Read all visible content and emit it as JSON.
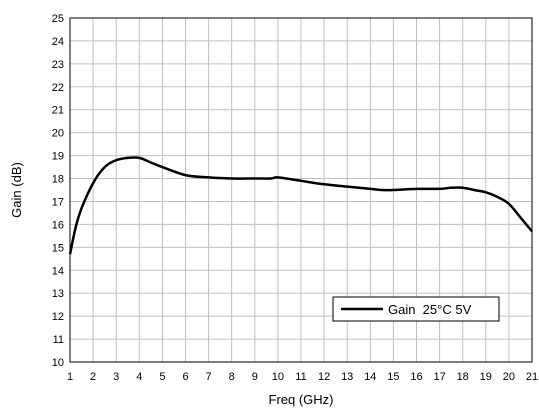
{
  "chart_data": {
    "type": "line",
    "xlabel": "Freq (GHz)",
    "ylabel": "Gain (dB)",
    "xlim": [
      1,
      21
    ],
    "ylim": [
      10,
      25
    ],
    "xticks": [
      1,
      2,
      3,
      4,
      5,
      6,
      7,
      8,
      9,
      10,
      11,
      12,
      13,
      14,
      15,
      16,
      17,
      18,
      19,
      20,
      21
    ],
    "yticks": [
      10,
      11,
      12,
      13,
      14,
      15,
      16,
      17,
      18,
      19,
      20,
      21,
      22,
      23,
      24,
      25
    ],
    "grid": true,
    "legend_position": "bottom-right",
    "series": [
      {
        "name": "Gain  25°C 5V",
        "color": "#000000",
        "x": [
          1,
          1.25,
          1.5,
          2,
          2.5,
          3,
          3.5,
          4,
          4.5,
          5,
          6,
          7,
          8,
          9,
          9.7,
          10,
          11,
          12,
          13,
          14,
          14.5,
          15,
          16,
          17,
          17.5,
          18,
          18.5,
          19,
          19.5,
          20,
          20.5,
          21
        ],
        "y": [
          14.7,
          15.9,
          16.7,
          17.8,
          18.5,
          18.8,
          18.9,
          18.9,
          18.7,
          18.5,
          18.15,
          18.05,
          18.0,
          18.0,
          18.0,
          18.05,
          17.9,
          17.75,
          17.65,
          17.55,
          17.5,
          17.5,
          17.55,
          17.55,
          17.6,
          17.6,
          17.5,
          17.4,
          17.2,
          16.9,
          16.3,
          15.7
        ]
      }
    ]
  }
}
